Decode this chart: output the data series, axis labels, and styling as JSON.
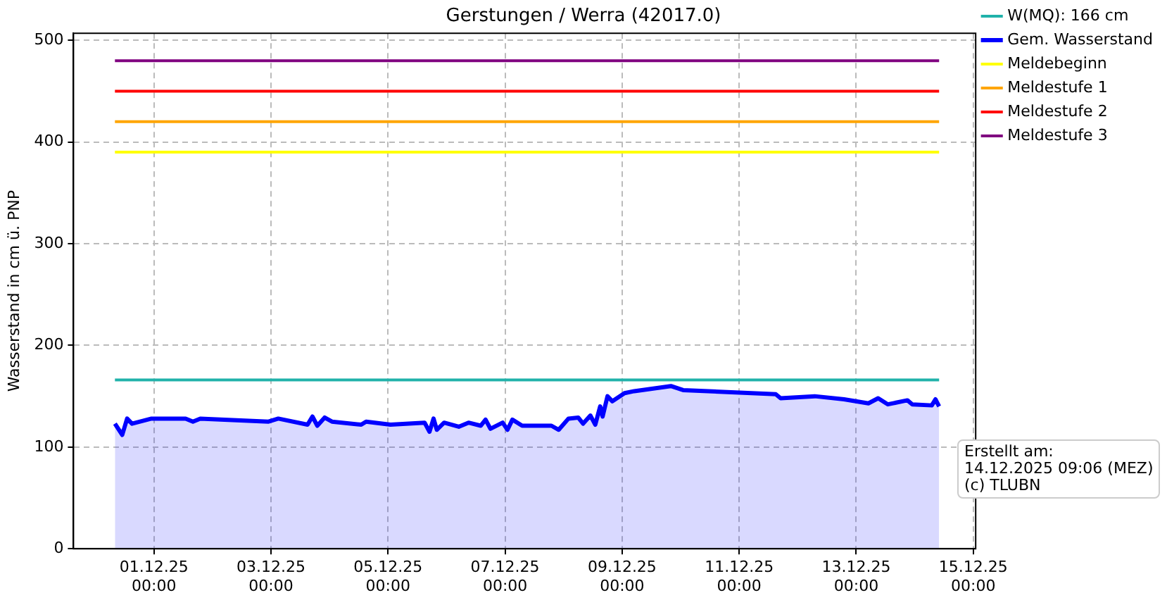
{
  "chart_data": {
    "type": "line",
    "title": "Gerstungen / Werra (42017.0)",
    "ylabel": "Wasserstand in cm ü. PNP",
    "xlim": [
      "2025-11-29T15:00",
      "2025-12-15T01:00"
    ],
    "ylim": [
      0,
      507
    ],
    "xticks": [
      {
        "value": "2025-12-01T00:00",
        "label": "01.12.25\n00:00"
      },
      {
        "value": "2025-12-03T00:00",
        "label": "03.12.25\n00:00"
      },
      {
        "value": "2025-12-05T00:00",
        "label": "05.12.25\n00:00"
      },
      {
        "value": "2025-12-07T00:00",
        "label": "07.12.25\n00:00"
      },
      {
        "value": "2025-12-09T00:00",
        "label": "09.12.25\n00:00"
      },
      {
        "value": "2025-12-11T00:00",
        "label": "11.12.25\n00:00"
      },
      {
        "value": "2025-12-13T00:00",
        "label": "13.12.25\n00:00"
      },
      {
        "value": "2025-12-15T00:00",
        "label": "15.12.25\n00:00"
      }
    ],
    "yticks": [
      0,
      100,
      200,
      300,
      400,
      500
    ],
    "grid": true,
    "legend": "top right",
    "marker": "none",
    "line_style": "solid",
    "annotations": [
      "Erstellt am:\n14.12.2025 09:06 (MEZ)\n(c) TLUBN"
    ],
    "series": [
      {
        "name": "W(MQ): 166 cm",
        "type": "line",
        "color": "#20b2aa",
        "x": [
          "2025-11-30T08:00",
          "2025-12-14T10:00"
        ],
        "values": [
          166,
          166
        ]
      },
      {
        "name": "Gem. Wasserstand",
        "type": "area",
        "color": "#0000ff",
        "x": [
          "2025-11-30T08:00",
          "2025-11-30T11:00",
          "2025-11-30T13:00",
          "2025-11-30T15:00",
          "2025-11-30T23:00",
          "2025-12-01T13:00",
          "2025-12-01T16:00",
          "2025-12-01T19:00",
          "2025-12-02T23:00",
          "2025-12-03T03:00",
          "2025-12-03T15:00",
          "2025-12-03T17:00",
          "2025-12-03T19:00",
          "2025-12-03T22:00",
          "2025-12-04T01:00",
          "2025-12-04T13:00",
          "2025-12-04T15:00",
          "2025-12-05T01:00",
          "2025-12-05T15:00",
          "2025-12-05T17:00",
          "2025-12-05T18:40",
          "2025-12-05T20:00",
          "2025-12-05T23:00",
          "2025-12-06T05:00",
          "2025-12-06T09:00",
          "2025-12-06T14:00",
          "2025-12-06T16:00",
          "2025-12-06T18:00",
          "2025-12-06T23:00",
          "2025-12-07T01:00",
          "2025-12-07T03:00",
          "2025-12-07T07:00",
          "2025-12-07T19:00",
          "2025-12-07T22:00",
          "2025-12-08T02:00",
          "2025-12-08T06:00",
          "2025-12-08T08:00",
          "2025-12-08T11:00",
          "2025-12-08T13:00",
          "2025-12-08T15:00",
          "2025-12-08T16:00",
          "2025-12-08T18:00",
          "2025-12-08T20:00",
          "2025-12-09T01:00",
          "2025-12-09T05:00",
          "2025-12-09T20:00",
          "2025-12-10T01:00",
          "2025-12-11T15:00",
          "2025-12-11T17:00",
          "2025-12-12T07:00",
          "2025-12-12T19:00",
          "2025-12-13T05:00",
          "2025-12-13T09:00",
          "2025-12-13T13:00",
          "2025-12-13T21:00",
          "2025-12-13T23:00",
          "2025-12-14T07:00",
          "2025-12-14T08:30",
          "2025-12-14T10:00"
        ],
        "values": [
          123,
          112,
          128,
          123,
          128,
          128,
          125,
          128,
          125,
          128,
          122,
          130,
          121,
          129,
          125,
          122,
          125,
          122,
          124,
          115,
          128,
          117,
          124,
          120,
          124,
          121,
          127,
          118,
          124,
          117,
          127,
          121,
          121,
          117,
          128,
          129,
          123,
          131,
          122,
          140,
          130,
          150,
          145,
          153,
          155,
          160,
          156,
          152,
          148,
          150,
          147,
          143,
          148,
          142,
          146,
          142,
          141,
          147,
          140
        ]
      },
      {
        "name": "Meldebeginn",
        "type": "line",
        "color": "#ffff00",
        "x": [
          "2025-11-30T08:00",
          "2025-12-14T10:00"
        ],
        "values": [
          390,
          390
        ]
      },
      {
        "name": "Meldestufe 1",
        "type": "line",
        "color": "#ffa500",
        "x": [
          "2025-11-30T08:00",
          "2025-12-14T10:00"
        ],
        "values": [
          420,
          420
        ]
      },
      {
        "name": "Meldestufe 2",
        "type": "line",
        "color": "#ff0000",
        "x": [
          "2025-11-30T08:00",
          "2025-12-14T10:00"
        ],
        "values": [
          450,
          450
        ]
      },
      {
        "name": "Meldestufe 3",
        "type": "line",
        "color": "#800080",
        "x": [
          "2025-11-30T08:00",
          "2025-12-14T10:00"
        ],
        "values": [
          480,
          480
        ]
      }
    ]
  }
}
